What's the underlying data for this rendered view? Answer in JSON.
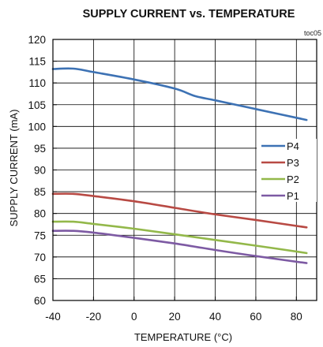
{
  "chart_data": {
    "type": "line",
    "title": "SUPPLY CURRENT vs. TEMPERATURE",
    "annotation": "toc05",
    "xlabel": "TEMPERATURE (°C)",
    "ylabel": "SUPPLY CURRENT (mA)",
    "xlim": [
      -40,
      90
    ],
    "ylim": [
      60,
      120
    ],
    "x_ticks": [
      "-40",
      "-20",
      "0",
      "20",
      "40",
      "60",
      "80"
    ],
    "y_ticks": [
      "60",
      "65",
      "70",
      "75",
      "80",
      "85",
      "90",
      "95",
      "100",
      "105",
      "110",
      "115",
      "120"
    ],
    "grid": true,
    "legend_position": "right",
    "series": [
      {
        "name": "P4",
        "color": "#3d72b4",
        "x": [
          -40,
          -30,
          -20,
          0,
          20,
          30,
          40,
          60,
          85
        ],
        "y": [
          113.2,
          113.3,
          112.5,
          110.8,
          108.7,
          107.0,
          106.0,
          104.0,
          101.5
        ]
      },
      {
        "name": "P3",
        "color": "#b84a44",
        "x": [
          -40,
          -30,
          -20,
          0,
          20,
          40,
          60,
          85
        ],
        "y": [
          84.5,
          84.5,
          84.0,
          82.8,
          81.3,
          79.8,
          78.5,
          76.8
        ]
      },
      {
        "name": "P2",
        "color": "#93b84a",
        "x": [
          -40,
          -30,
          -20,
          0,
          20,
          40,
          60,
          85
        ],
        "y": [
          78.1,
          78.1,
          77.6,
          76.5,
          75.2,
          73.9,
          72.6,
          70.9
        ]
      },
      {
        "name": "P1",
        "color": "#7d5aa3",
        "x": [
          -40,
          -30,
          -20,
          0,
          20,
          40,
          60,
          85
        ],
        "y": [
          76.0,
          76.0,
          75.6,
          74.4,
          73.1,
          71.6,
          70.2,
          68.6
        ]
      }
    ]
  }
}
